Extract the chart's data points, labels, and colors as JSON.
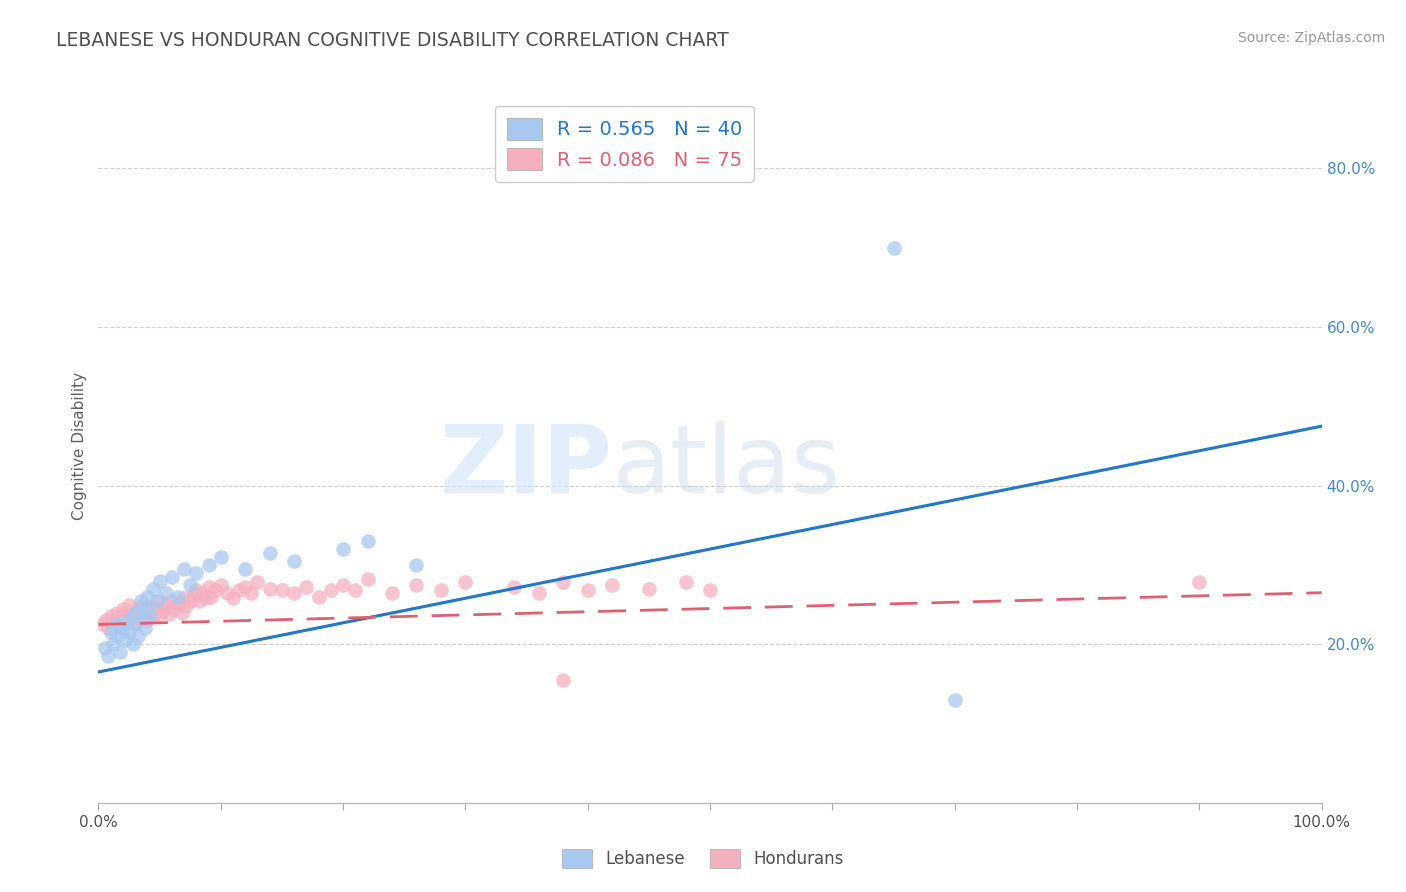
{
  "title": "LEBANESE VS HONDURAN COGNITIVE DISABILITY CORRELATION CHART",
  "source_text": "Source: ZipAtlas.com",
  "xlabel": "",
  "ylabel": "Cognitive Disability",
  "x_min": 0.0,
  "x_max": 1.0,
  "y_min": 0.0,
  "y_max": 0.9,
  "x_ticks": [
    0.0,
    0.1,
    0.2,
    0.3,
    0.4,
    0.5,
    0.6,
    0.7,
    0.8,
    0.9,
    1.0
  ],
  "x_tick_labels": [
    "0.0%",
    "",
    "",
    "",
    "",
    "",
    "",
    "",
    "",
    "",
    "100.0%"
  ],
  "y_ticks": [
    0.2,
    0.4,
    0.6,
    0.8
  ],
  "y_tick_labels": [
    "20.0%",
    "40.0%",
    "60.0%",
    "80.0%"
  ],
  "legend_blue_label": "Lebanese",
  "legend_pink_label": "Hondurans",
  "blue_R": 0.565,
  "blue_N": 40,
  "pink_R": 0.086,
  "pink_N": 75,
  "blue_color": "#a8c8f0",
  "pink_color": "#f5b0c0",
  "blue_line_color": "#2277cc",
  "pink_line_color": "#e06070",
  "watermark_left": "ZIP",
  "watermark_right": "atlas",
  "background_color": "#ffffff",
  "grid_color": "#cccccc",
  "title_color": "#505050",
  "blue_line_start_y": 0.165,
  "blue_line_end_y": 0.475,
  "pink_line_start_y": 0.225,
  "pink_line_end_y": 0.265,
  "lebanese_x": [
    0.005,
    0.008,
    0.01,
    0.012,
    0.015,
    0.015,
    0.018,
    0.02,
    0.022,
    0.025,
    0.025,
    0.028,
    0.03,
    0.03,
    0.032,
    0.035,
    0.035,
    0.038,
    0.04,
    0.04,
    0.042,
    0.045,
    0.048,
    0.05,
    0.055,
    0.06,
    0.065,
    0.07,
    0.075,
    0.08,
    0.09,
    0.1,
    0.12,
    0.14,
    0.16,
    0.2,
    0.22,
    0.26,
    0.65,
    0.7
  ],
  "lebanese_y": [
    0.195,
    0.185,
    0.215,
    0.2,
    0.21,
    0.225,
    0.19,
    0.22,
    0.205,
    0.215,
    0.23,
    0.2,
    0.225,
    0.24,
    0.21,
    0.255,
    0.24,
    0.22,
    0.26,
    0.245,
    0.235,
    0.27,
    0.255,
    0.28,
    0.265,
    0.285,
    0.26,
    0.295,
    0.275,
    0.29,
    0.3,
    0.31,
    0.295,
    0.315,
    0.305,
    0.32,
    0.33,
    0.3,
    0.7,
    0.13
  ],
  "honduran_x": [
    0.004,
    0.006,
    0.008,
    0.01,
    0.012,
    0.015,
    0.015,
    0.018,
    0.02,
    0.02,
    0.022,
    0.025,
    0.025,
    0.028,
    0.03,
    0.03,
    0.032,
    0.035,
    0.035,
    0.038,
    0.04,
    0.04,
    0.042,
    0.045,
    0.048,
    0.05,
    0.05,
    0.052,
    0.055,
    0.058,
    0.06,
    0.062,
    0.065,
    0.068,
    0.07,
    0.072,
    0.075,
    0.078,
    0.08,
    0.082,
    0.085,
    0.088,
    0.09,
    0.092,
    0.095,
    0.1,
    0.105,
    0.11,
    0.115,
    0.12,
    0.125,
    0.13,
    0.14,
    0.15,
    0.16,
    0.17,
    0.18,
    0.19,
    0.2,
    0.21,
    0.22,
    0.24,
    0.26,
    0.28,
    0.3,
    0.34,
    0.36,
    0.38,
    0.4,
    0.42,
    0.45,
    0.48,
    0.5,
    0.38,
    0.9
  ],
  "honduran_y": [
    0.225,
    0.23,
    0.22,
    0.235,
    0.225,
    0.24,
    0.228,
    0.222,
    0.235,
    0.245,
    0.228,
    0.238,
    0.25,
    0.235,
    0.24,
    0.228,
    0.245,
    0.232,
    0.248,
    0.238,
    0.242,
    0.23,
    0.248,
    0.235,
    0.245,
    0.238,
    0.255,
    0.242,
    0.25,
    0.238,
    0.255,
    0.245,
    0.252,
    0.24,
    0.258,
    0.248,
    0.255,
    0.262,
    0.268,
    0.255,
    0.265,
    0.258,
    0.272,
    0.26,
    0.268,
    0.275,
    0.265,
    0.258,
    0.268,
    0.272,
    0.265,
    0.278,
    0.27,
    0.268,
    0.265,
    0.272,
    0.26,
    0.268,
    0.275,
    0.268,
    0.282,
    0.265,
    0.275,
    0.268,
    0.278,
    0.272,
    0.265,
    0.278,
    0.268,
    0.275,
    0.27,
    0.278,
    0.268,
    0.155,
    0.278
  ]
}
